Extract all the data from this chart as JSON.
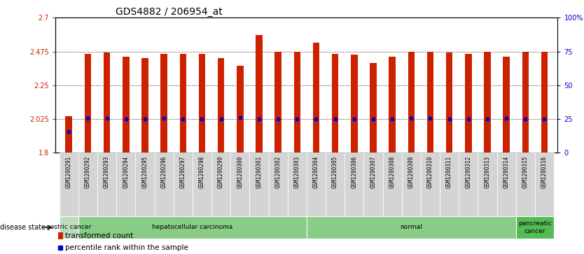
{
  "title": "GDS4882 / 206954_at",
  "samples": [
    "GSM1200291",
    "GSM1200292",
    "GSM1200293",
    "GSM1200294",
    "GSM1200295",
    "GSM1200296",
    "GSM1200297",
    "GSM1200298",
    "GSM1200299",
    "GSM1200300",
    "GSM1200301",
    "GSM1200302",
    "GSM1200303",
    "GSM1200304",
    "GSM1200305",
    "GSM1200306",
    "GSM1200307",
    "GSM1200308",
    "GSM1200309",
    "GSM1200310",
    "GSM1200311",
    "GSM1200312",
    "GSM1200313",
    "GSM1200314",
    "GSM1200315",
    "GSM1200316"
  ],
  "bar_values": [
    2.04,
    2.46,
    2.47,
    2.44,
    2.43,
    2.46,
    2.46,
    2.46,
    2.43,
    2.38,
    2.585,
    2.475,
    2.475,
    2.535,
    2.46,
    2.455,
    2.4,
    2.44,
    2.475,
    2.475,
    2.47,
    2.46,
    2.475,
    2.44,
    2.475,
    2.475
  ],
  "percentile_values": [
    1.94,
    2.03,
    2.03,
    2.025,
    2.025,
    2.03,
    2.025,
    2.025,
    2.025,
    2.035,
    2.025,
    2.025,
    2.025,
    2.025,
    2.025,
    2.025,
    2.025,
    2.025,
    2.03,
    2.03,
    2.025,
    2.025,
    2.025,
    2.03,
    2.025,
    2.025
  ],
  "ylim_left": [
    1.8,
    2.7
  ],
  "yticks_left": [
    1.8,
    2.025,
    2.25,
    2.475,
    2.7
  ],
  "ytick_labels_left": [
    "1.8",
    "2.025",
    "2.25",
    "2.475",
    "2.7"
  ],
  "ylim_right": [
    0,
    100
  ],
  "yticks_right": [
    0,
    25,
    50,
    75,
    100
  ],
  "ytick_labels_right": [
    "0",
    "25",
    "50",
    "75",
    "100%"
  ],
  "bar_color": "#cc2200",
  "percentile_color": "#0000cc",
  "bg_color": "#ffffff",
  "plot_bg_color": "#ffffff",
  "left_axis_color": "#cc2200",
  "right_axis_color": "#0000cc",
  "disease_groups": [
    {
      "label": "gastric cancer",
      "start": 0,
      "end": 1,
      "color": "#bbddbb"
    },
    {
      "label": "hepatocellular carcinoma",
      "start": 1,
      "end": 13,
      "color": "#88cc88"
    },
    {
      "label": "normal",
      "start": 13,
      "end": 24,
      "color": "#88cc88"
    },
    {
      "label": "pancreatic\ncancer",
      "start": 24,
      "end": 26,
      "color": "#55bb55"
    }
  ],
  "disease_state_label": "disease state",
  "legend_bar_label": "transformed count",
  "legend_pct_label": "percentile rank within the sample",
  "title_fontsize": 10,
  "tick_fontsize": 7,
  "xtick_fontsize": 5.5,
  "label_fontsize": 7.5
}
